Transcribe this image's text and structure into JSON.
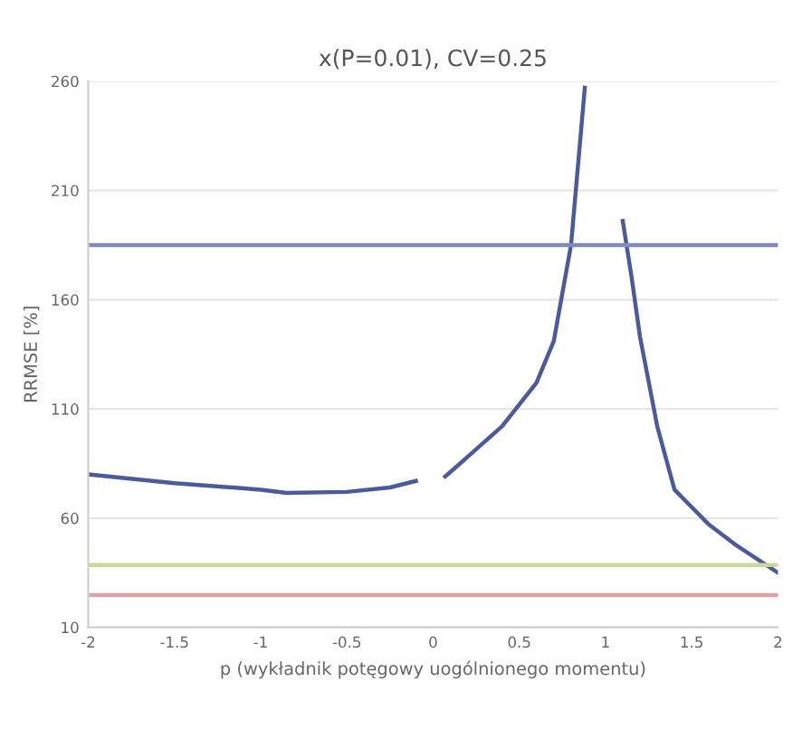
{
  "chart_data": {
    "type": "line",
    "title": "x(P=0.01), CV=0.25",
    "xlabel": "p (wykładnik potęgowy uogólnionego momentu)",
    "ylabel": "RRMSE [%]",
    "xlim": [
      -2,
      2
    ],
    "xticks": [
      -2,
      -1.5,
      -1,
      -0.5,
      0,
      0.5,
      1,
      1.5,
      2
    ],
    "ylim": [
      10,
      260
    ],
    "yticks": [
      10,
      60,
      110,
      160,
      210,
      260
    ],
    "grid": "y",
    "legend": false,
    "series": [
      {
        "color": "#4a5a9c",
        "x": [
          -2,
          -1.5,
          -1,
          -0.85,
          -0.5,
          -0.25,
          -0.1
        ],
        "values": [
          80,
          76,
          73,
          71.5,
          72,
          74,
          77
        ]
      },
      {
        "color": "#4a5a9c",
        "x": [
          0.07,
          0.2,
          0.4,
          0.6,
          0.7,
          0.8,
          0.88
        ],
        "values": [
          79,
          88,
          102,
          122,
          141,
          185,
          257
        ]
      },
      {
        "color": "#4a5a9c",
        "x": [
          1.1,
          1.15,
          1.2,
          1.3,
          1.4,
          1.5,
          1.6,
          1.75,
          2
        ],
        "values": [
          196,
          171,
          143,
          102,
          73,
          65,
          57,
          48,
          35
        ]
      },
      {
        "color": "#7f8ab8",
        "x": [
          -2,
          2
        ],
        "values": [
          185,
          185
        ]
      },
      {
        "color": "#c8d89a",
        "x": [
          -2,
          2
        ],
        "values": [
          38.5,
          38.5
        ]
      },
      {
        "color": "#e0a0a8",
        "x": [
          -2,
          2
        ],
        "values": [
          24.7,
          24.7
        ]
      }
    ]
  }
}
